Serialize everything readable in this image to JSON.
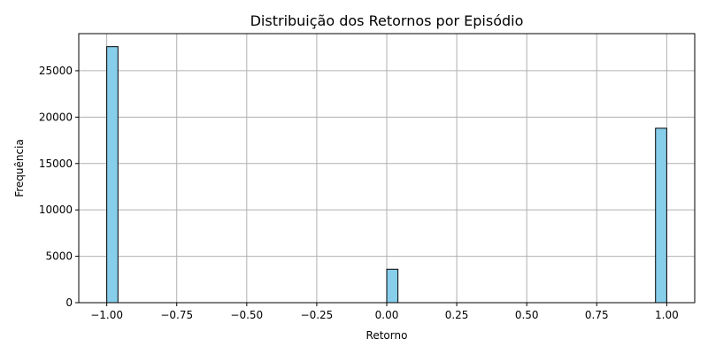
{
  "chart_data": {
    "type": "bar",
    "subtype": "histogram",
    "title": "Distribuição dos Retornos por Episódio",
    "xlabel": "Retorno",
    "ylabel": "Frequência",
    "xlim": [
      -1.1,
      1.1
    ],
    "ylim": [
      0,
      29000
    ],
    "grid": true,
    "bar_color": "#87ceeb",
    "edge_color": "#000000",
    "bin_width": 0.04,
    "bins": [
      {
        "x_start": -1.0,
        "x_end": -0.96,
        "value": 27600
      },
      {
        "x_start": 0.0,
        "x_end": 0.04,
        "value": 3600
      },
      {
        "x_start": 0.96,
        "x_end": 1.0,
        "value": 18800
      }
    ],
    "x_ticks": [
      {
        "value": -1.0,
        "label": "−1.00"
      },
      {
        "value": -0.75,
        "label": "−0.75"
      },
      {
        "value": -0.5,
        "label": "−0.50"
      },
      {
        "value": -0.25,
        "label": "−0.25"
      },
      {
        "value": 0.0,
        "label": "0.00"
      },
      {
        "value": 0.25,
        "label": "0.25"
      },
      {
        "value": 0.5,
        "label": "0.50"
      },
      {
        "value": 0.75,
        "label": "0.75"
      },
      {
        "value": 1.0,
        "label": "1.00"
      }
    ],
    "y_ticks": [
      {
        "value": 0,
        "label": "0"
      },
      {
        "value": 5000,
        "label": "5000"
      },
      {
        "value": 10000,
        "label": "10000"
      },
      {
        "value": 15000,
        "label": "15000"
      },
      {
        "value": 20000,
        "label": "20000"
      },
      {
        "value": 25000,
        "label": "25000"
      }
    ]
  }
}
